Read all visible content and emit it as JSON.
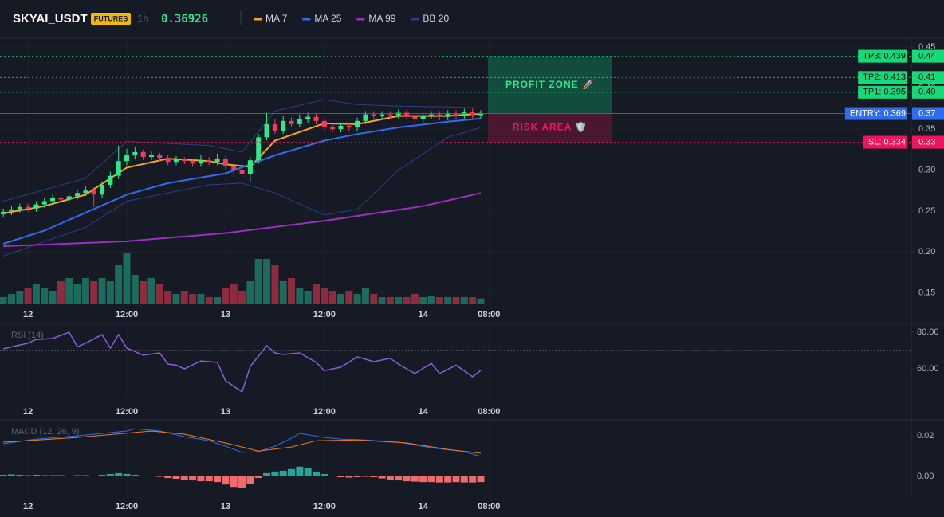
{
  "chart_data": {
    "type": "candlestick",
    "symbol": "SKYAI_USDT",
    "badge": "FUTURES",
    "interval": "1h",
    "last_price": 0.36926,
    "xlim": [
      -0.4,
      110.3
    ],
    "xticks": [
      {
        "value": 3,
        "label": "12"
      },
      {
        "value": 15,
        "label": "12:00"
      },
      {
        "value": 27,
        "label": "13"
      },
      {
        "value": 39,
        "label": "12:00"
      },
      {
        "value": 51,
        "label": "14"
      },
      {
        "value": 59,
        "label": "08:00"
      }
    ],
    "ylim": [
      0.137,
      0.461
    ],
    "yticks": [
      0.15,
      {
        "value": 0.2,
        "label": "0.20"
      },
      0.25,
      {
        "value": 0.3,
        "label": "0.30"
      },
      0.35,
      {
        "value": 0.4,
        "label": "0.40"
      },
      0.45
    ],
    "up_color": "#2ee88a",
    "down_color": "#f23a5e",
    "candles": [
      [
        0.246,
        0.253,
        0.242,
        0.249
      ],
      [
        0.249,
        0.256,
        0.245,
        0.252
      ],
      [
        0.252,
        0.259,
        0.248,
        0.255
      ],
      [
        0.255,
        0.259,
        0.249,
        0.253
      ],
      [
        0.253,
        0.262,
        0.249,
        0.258
      ],
      [
        0.258,
        0.266,
        0.254,
        0.262
      ],
      [
        0.262,
        0.27,
        0.258,
        0.266
      ],
      [
        0.266,
        0.27,
        0.26,
        0.264
      ],
      [
        0.264,
        0.272,
        0.26,
        0.268
      ],
      [
        0.268,
        0.276,
        0.264,
        0.272
      ],
      [
        0.272,
        0.28,
        0.268,
        0.275
      ],
      [
        0.275,
        0.279,
        0.255,
        0.27
      ],
      [
        0.27,
        0.286,
        0.266,
        0.282
      ],
      [
        0.282,
        0.298,
        0.278,
        0.293
      ],
      [
        0.293,
        0.33,
        0.289,
        0.311
      ],
      [
        0.311,
        0.326,
        0.306,
        0.318
      ],
      [
        0.318,
        0.328,
        0.313,
        0.322
      ],
      [
        0.322,
        0.325,
        0.312,
        0.316
      ],
      [
        0.316,
        0.323,
        0.312,
        0.318
      ],
      [
        0.318,
        0.321,
        0.311,
        0.315
      ],
      [
        0.315,
        0.318,
        0.306,
        0.31
      ],
      [
        0.31,
        0.317,
        0.306,
        0.313
      ],
      [
        0.313,
        0.316,
        0.307,
        0.311
      ],
      [
        0.311,
        0.314,
        0.304,
        0.308
      ],
      [
        0.308,
        0.318,
        0.304,
        0.312
      ],
      [
        0.312,
        0.316,
        0.306,
        0.31
      ],
      [
        0.31,
        0.32,
        0.306,
        0.314
      ],
      [
        0.314,
        0.317,
        0.301,
        0.305
      ],
      [
        0.305,
        0.309,
        0.292,
        0.3
      ],
      [
        0.3,
        0.304,
        0.289,
        0.295
      ],
      [
        0.295,
        0.316,
        0.285,
        0.312
      ],
      [
        0.312,
        0.344,
        0.308,
        0.34
      ],
      [
        0.34,
        0.37,
        0.336,
        0.356
      ],
      [
        0.356,
        0.362,
        0.344,
        0.348
      ],
      [
        0.348,
        0.366,
        0.344,
        0.36
      ],
      [
        0.36,
        0.364,
        0.352,
        0.356
      ],
      [
        0.356,
        0.368,
        0.352,
        0.362
      ],
      [
        0.362,
        0.37,
        0.358,
        0.365
      ],
      [
        0.365,
        0.369,
        0.356,
        0.36
      ],
      [
        0.36,
        0.364,
        0.348,
        0.352
      ],
      [
        0.352,
        0.356,
        0.346,
        0.35
      ],
      [
        0.35,
        0.358,
        0.346,
        0.354
      ],
      [
        0.354,
        0.358,
        0.348,
        0.352
      ],
      [
        0.352,
        0.364,
        0.348,
        0.36
      ],
      [
        0.36,
        0.372,
        0.356,
        0.368
      ],
      [
        0.368,
        0.372,
        0.362,
        0.366
      ],
      [
        0.366,
        0.372,
        0.362,
        0.368
      ],
      [
        0.368,
        0.372,
        0.363,
        0.367
      ],
      [
        0.367,
        0.374,
        0.363,
        0.37
      ],
      [
        0.37,
        0.374,
        0.361,
        0.365
      ],
      [
        0.365,
        0.369,
        0.358,
        0.362
      ],
      [
        0.362,
        0.37,
        0.358,
        0.366
      ],
      [
        0.366,
        0.372,
        0.362,
        0.368
      ],
      [
        0.368,
        0.372,
        0.361,
        0.365
      ],
      [
        0.365,
        0.373,
        0.361,
        0.369
      ],
      [
        0.369,
        0.373,
        0.362,
        0.366
      ],
      [
        0.366,
        0.375,
        0.362,
        0.371
      ],
      [
        0.371,
        0.375,
        0.363,
        0.367
      ],
      [
        0.367,
        0.373,
        0.363,
        0.369
      ]
    ],
    "volume": [
      10,
      15,
      20,
      25,
      30,
      25,
      20,
      35,
      40,
      30,
      40,
      35,
      40,
      35,
      60,
      80,
      45,
      35,
      40,
      30,
      20,
      15,
      20,
      15,
      15,
      10,
      10,
      25,
      30,
      20,
      35,
      70,
      70,
      60,
      35,
      40,
      25,
      20,
      30,
      25,
      20,
      15,
      20,
      15,
      25,
      15,
      10,
      10,
      10,
      10,
      15,
      10,
      12,
      10,
      10,
      10,
      10,
      10,
      8
    ],
    "overlays": [
      {
        "name": "MA 7",
        "color": "#f5a623",
        "x": [
          0,
          5,
          10,
          15,
          20,
          25,
          27,
          30,
          33,
          39,
          43,
          48,
          54,
          58
        ],
        "values": [
          0.247,
          0.256,
          0.27,
          0.303,
          0.314,
          0.311,
          0.307,
          0.304,
          0.336,
          0.357,
          0.356,
          0.366,
          0.366,
          0.369
        ]
      },
      {
        "name": "MA 25",
        "color": "#2f6df0",
        "x": [
          0,
          5,
          10,
          15,
          20,
          27,
          33,
          39,
          43,
          48,
          54,
          58
        ],
        "values": [
          0.21,
          0.226,
          0.248,
          0.27,
          0.284,
          0.296,
          0.318,
          0.336,
          0.344,
          0.352,
          0.359,
          0.363
        ]
      },
      {
        "name": "MA 99",
        "color": "#9c2fc0",
        "x": [
          0,
          15,
          27,
          39,
          51,
          58
        ],
        "values": [
          0.207,
          0.213,
          0.223,
          0.238,
          0.256,
          0.272
        ]
      }
    ],
    "bands": {
      "name": "BB 20",
      "color": "#2b3f85",
      "x": [
        0,
        10,
        15,
        25,
        29,
        33,
        39,
        43,
        48,
        54,
        58
      ],
      "upper": [
        0.262,
        0.29,
        0.335,
        0.33,
        0.322,
        0.372,
        0.386,
        0.38,
        0.378,
        0.377,
        0.376
      ],
      "lower": [
        0.195,
        0.23,
        0.262,
        0.282,
        0.284,
        0.272,
        0.245,
        0.252,
        0.3,
        0.34,
        0.352
      ]
    },
    "levels": [
      {
        "label": "TP3: 0.439",
        "value": 0.439,
        "axis_label": "0.44",
        "color": "#16d97a",
        "text_color": "#0b0e14",
        "dash": true
      },
      {
        "label": "TP2: 0.413",
        "value": 0.413,
        "axis_label": "0.41",
        "color": "#16d97a",
        "text_color": "#0b0e14",
        "dash": true
      },
      {
        "label": "TP1: 0.395",
        "value": 0.395,
        "axis_label": "0.40",
        "color": "#16d97a",
        "text_color": "#0b0e14",
        "dash": true
      },
      {
        "label": "ENTRY: 0.369",
        "value": 0.369,
        "axis_label": "0.37",
        "color": "#2f6df0",
        "text_color": "#ffffff",
        "dash": false
      },
      {
        "label": "SL: 0.334",
        "value": 0.334,
        "axis_label": "0.33",
        "color": "#f0155a",
        "text_color": "#ffffff",
        "dash": true
      }
    ],
    "zones": [
      {
        "label": "PROFIT ZONE 🚀",
        "top": 0.439,
        "bottom": 0.369,
        "color": "#0e8a5a",
        "text_color": "#2ee88a"
      },
      {
        "label": "RISK AREA 🛡️",
        "top": 0.369,
        "bottom": 0.334,
        "color": "#8a1540",
        "text_color": "#f0155a"
      }
    ],
    "rsi": {
      "title": "RSI (14)",
      "color": "#8a5cd6",
      "ylim": [
        43.9,
        83.9
      ],
      "yticks": [
        {
          "value": 80,
          "label": "80.00"
        },
        {
          "value": 60,
          "label": "60.00"
        }
      ],
      "overbought": 70,
      "x": [
        0,
        2,
        3,
        4,
        6,
        8,
        9,
        10,
        12,
        13,
        14,
        15,
        17,
        19,
        20,
        21,
        22,
        24,
        26,
        27,
        29,
        30,
        32,
        33,
        34,
        36,
        38,
        39,
        41,
        43,
        45,
        47,
        48,
        50,
        52,
        53,
        55,
        57,
        58
      ],
      "values": [
        70.9,
        73,
        74,
        76,
        76.5,
        80,
        72,
        74,
        78.7,
        71.3,
        78.7,
        71.3,
        67.4,
        68.7,
        62.6,
        62,
        60,
        64.3,
        63.5,
        53.5,
        47.4,
        61.3,
        72.6,
        68.7,
        67.8,
        68.7,
        63.5,
        59,
        60.9,
        66.5,
        63.9,
        65.7,
        62.6,
        57.4,
        63,
        57.4,
        62,
        55.7,
        59.1
      ]
    },
    "macd": {
      "title": "MACD (12, 26, 9)",
      "ylim": [
        -0.0106,
        0.0267
      ],
      "yticks": [
        0.02,
        {
          "value": 0,
          "label": "0.00"
        }
      ],
      "line": {
        "color": "#2f6df0",
        "x": [
          0,
          4,
          9,
          15,
          16,
          19,
          22,
          25,
          27,
          29,
          31,
          33,
          35,
          36,
          39,
          41,
          44,
          48,
          52,
          56,
          58
        ],
        "values": [
          0.0161,
          0.0184,
          0.02,
          0.0224,
          0.0235,
          0.0224,
          0.0196,
          0.0176,
          0.0149,
          0.0118,
          0.0122,
          0.0149,
          0.0188,
          0.0212,
          0.0192,
          0.0184,
          0.018,
          0.0169,
          0.0141,
          0.0122,
          0.0098
        ]
      },
      "signal": {
        "color": "#f07c1e",
        "x": [
          0,
          9,
          18,
          22,
          27,
          31,
          35,
          38,
          43,
          49,
          54,
          58
        ],
        "values": [
          0.0169,
          0.0192,
          0.0224,
          0.0208,
          0.0165,
          0.0125,
          0.0145,
          0.0176,
          0.018,
          0.0165,
          0.0133,
          0.0114
        ]
      },
      "pos_color": "#26a69a",
      "neg_color": "#ef6c6c",
      "histogram": [
        0.0008,
        0.001,
        0.0008,
        0.0006,
        0.0008,
        0.0006,
        0.0006,
        0.0006,
        0.0004,
        0.0006,
        0.0006,
        0.0004,
        0.0008,
        0.0012,
        0.0016,
        0.0012,
        0.0008,
        0.0004,
        0.0002,
        -0.0002,
        -0.0008,
        -0.0012,
        -0.0016,
        -0.002,
        -0.0024,
        -0.0024,
        -0.0028,
        -0.004,
        -0.0052,
        -0.0056,
        -0.0036,
        -0.0008,
        0.0016,
        0.0024,
        0.0028,
        0.0036,
        0.0048,
        0.004,
        0.0024,
        0.0012,
        0.0004,
        -0.0004,
        -0.0006,
        -0.0004,
        -0.0002,
        -0.0004,
        -0.001,
        -0.0016,
        -0.002,
        -0.0024,
        -0.0026,
        -0.0028,
        -0.0028,
        -0.003,
        -0.003,
        -0.0028,
        -0.003,
        -0.003,
        -0.0028
      ]
    }
  }
}
